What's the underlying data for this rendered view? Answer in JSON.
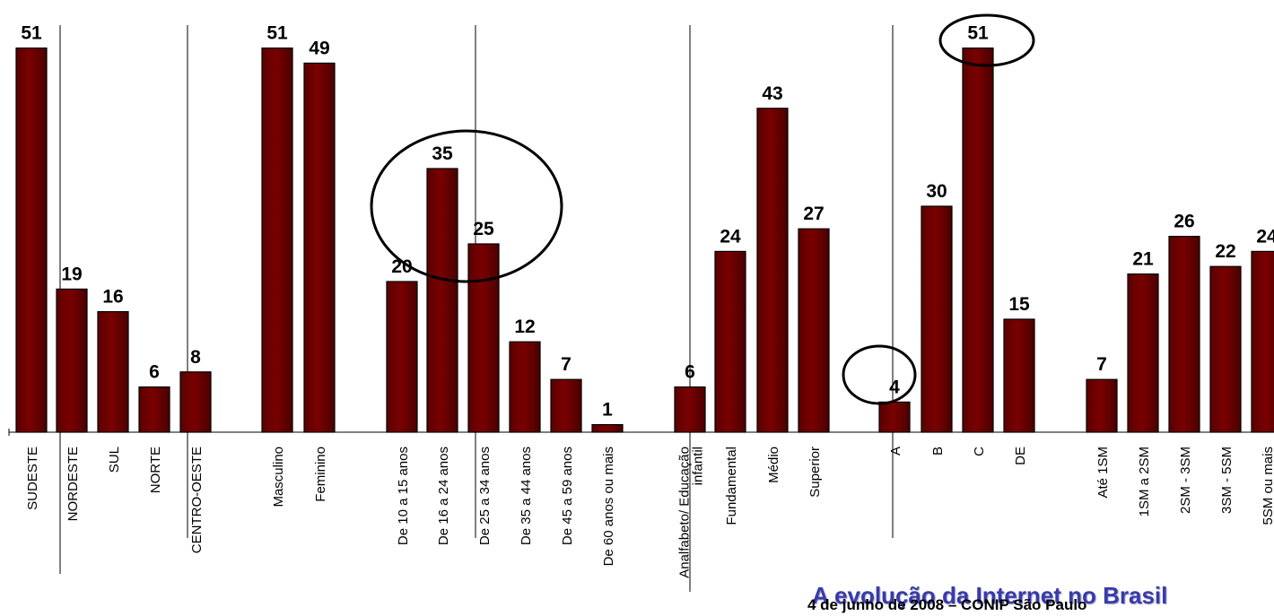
{
  "chart_data": {
    "type": "bar",
    "categories": [
      "SUDESTE",
      "NORDESTE",
      "SUL",
      "NORTE",
      "CENTRO-OESTE",
      "Masculino",
      "Feminino",
      "De 10 a 15 anos",
      "De 16 a 24 anos",
      "De 25 a 34 anos",
      "De 35 a 44 anos",
      "De 45 a 59 anos",
      "De 60 anos ou mais",
      "Analfabeto/ Educação infantil",
      "Fundamental",
      "Médio",
      "Superior",
      "A",
      "B",
      "C",
      "DE",
      "Até 1SM",
      "1SM a 2SM",
      "2SM - 3SM",
      "3SM - 5SM",
      "5SM ou mais"
    ],
    "values": [
      51,
      19,
      16,
      6,
      8,
      51,
      49,
      20,
      35,
      25,
      12,
      7,
      1,
      6,
      24,
      43,
      27,
      4,
      30,
      51,
      15,
      7,
      21,
      26,
      22,
      24
    ],
    "data_labels": [
      "51",
      "19",
      "16",
      "6",
      "8",
      "51",
      "49",
      "20",
      "35",
      "25",
      "12",
      "7",
      "1",
      "6",
      "24",
      "43",
      "27",
      "4",
      "30",
      "51",
      "15",
      "7",
      "21",
      "26",
      "22",
      "24"
    ],
    "ylim": [
      0,
      55
    ],
    "bar_color": "#7a0000",
    "grid": false,
    "highlighted_categories": [
      "De 16 a 24 anos",
      "De 25 a 34 anos",
      "A",
      "C"
    ]
  },
  "footer": {
    "title": "A evolução da Internet no Brasil",
    "subtitle": "4 de junho de 2008 –  CONIP São Paulo"
  }
}
